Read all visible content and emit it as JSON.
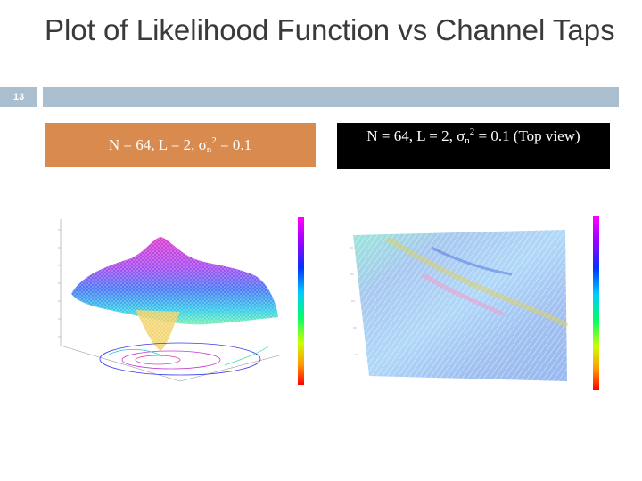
{
  "slide": {
    "title": "Plot of Likelihood Function vs Channel Taps",
    "number": "13"
  },
  "captions": {
    "left": {
      "prefix": "N = 64, L = 2,  σ",
      "sub": "n",
      "sup": "2",
      "suffix": " = 0.1"
    },
    "right": {
      "prefix": "N = 64, L = 2,  σ",
      "sub": "n",
      "sup": "2",
      "suffix": " = 0.1 (Top view)"
    }
  },
  "colors": {
    "rule": "#a9bfd0",
    "caption_left_bg": "#d98a4e",
    "caption_right_bg": "#000000"
  }
}
